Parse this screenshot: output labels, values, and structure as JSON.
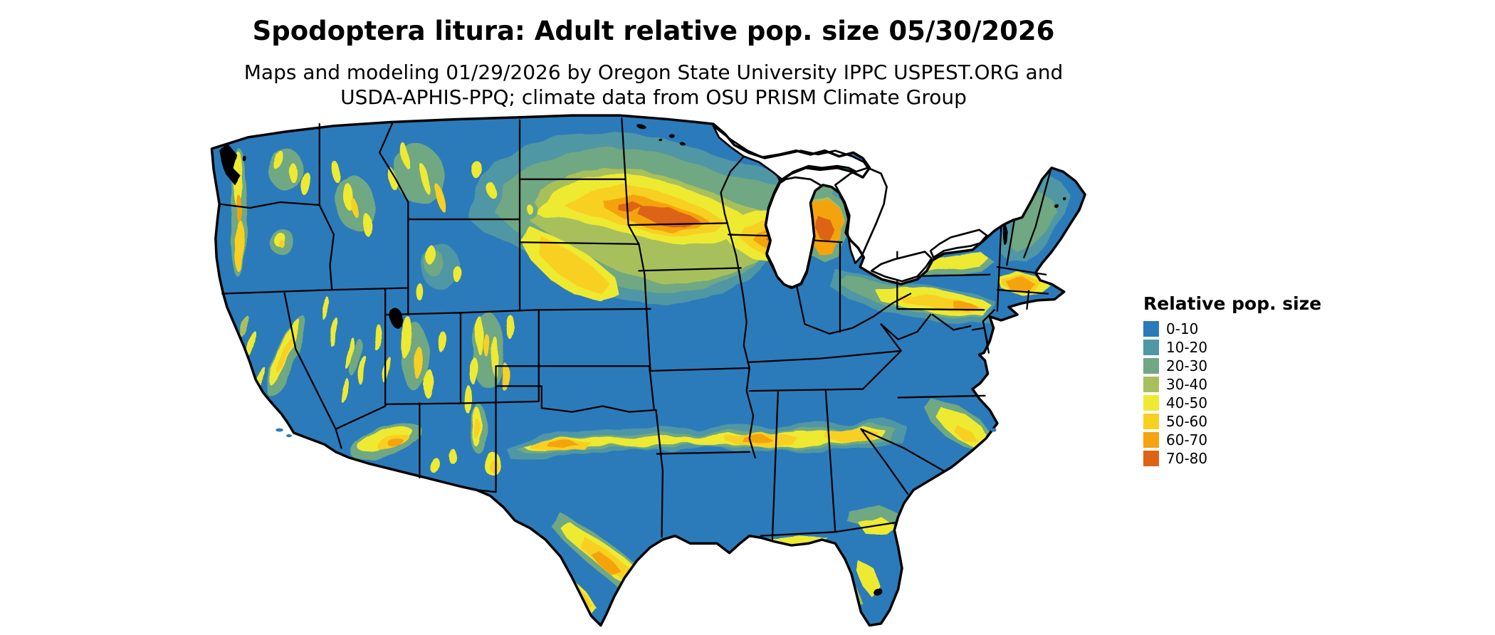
{
  "header": {
    "title": "Spodoptera litura: Adult relative pop. size 05/30/2026",
    "subtitle_line1": "Maps and modeling 01/29/2026 by Oregon State University IPPC USPEST.ORG and",
    "subtitle_line2": "USDA-APHIS-PPQ; climate data from OSU PRISM Climate Group"
  },
  "legend": {
    "title": "Relative pop. size",
    "entries": [
      {
        "label": "0-10",
        "color": "#2b7bba"
      },
      {
        "label": "10-20",
        "color": "#4f97a4"
      },
      {
        "label": "20-30",
        "color": "#6fa883"
      },
      {
        "label": "30-40",
        "color": "#a8c05c"
      },
      {
        "label": "40-50",
        "color": "#eeea33"
      },
      {
        "label": "50-60",
        "color": "#f8d020"
      },
      {
        "label": "60-70",
        "color": "#f5a30f"
      },
      {
        "label": "70-80",
        "color": "#dd6414"
      }
    ]
  },
  "map": {
    "region": "Continental United States choropleth raster",
    "base_value_band": "0-10",
    "water_color": "#ffffff",
    "no_data_color": "#000000",
    "border_color": "#000000",
    "high_value_areas": "Upper Midwest band (southern Minnesota, Wisconsin, Michigan), mid-Atlantic corridor, Gulf Coast band, Texas coast, and western mountain ranges"
  }
}
